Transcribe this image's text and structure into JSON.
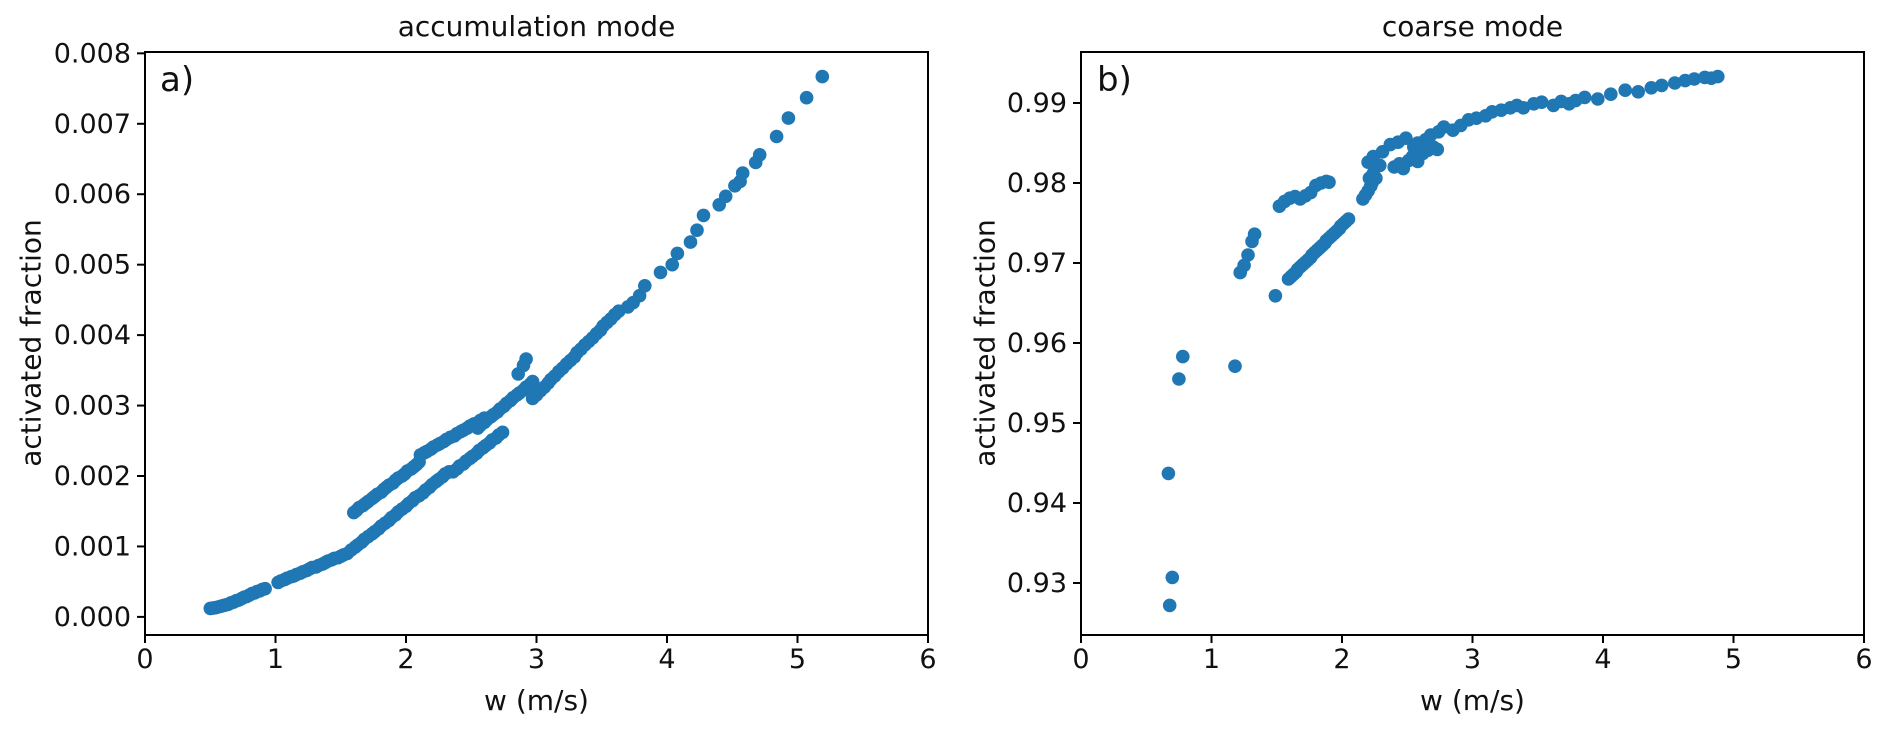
{
  "figure": {
    "background": "#ffffff",
    "text_color": "#111111",
    "axis_color": "#000000"
  },
  "chart_data": [
    {
      "type": "scatter",
      "panel_label": "a)",
      "title": "accumulation mode",
      "xlabel": "w (m/s)",
      "ylabel": "activated fraction",
      "xlim": [
        0,
        6
      ],
      "ylim": [
        -0.000257,
        0.008019
      ],
      "xticks": [
        0,
        1,
        2,
        3,
        4,
        5,
        6
      ],
      "xtick_labels": [
        "0",
        "1",
        "2",
        "3",
        "4",
        "5",
        "6"
      ],
      "yticks": [
        0.0,
        0.001,
        0.002,
        0.003,
        0.004,
        0.005,
        0.006,
        0.007,
        0.008
      ],
      "ytick_labels": [
        "0.000",
        "0.001",
        "0.002",
        "0.003",
        "0.004",
        "0.005",
        "0.006",
        "0.007",
        "0.008"
      ],
      "grid": false,
      "legend": null,
      "marker_color": "#1f77b4",
      "marker_radius_px": 6.8,
      "points": [
        [
          0.5,
          0.00012
        ],
        [
          0.52,
          0.000125
        ],
        [
          0.54,
          0.00013
        ],
        [
          0.56,
          0.00014
        ],
        [
          0.58,
          0.00015
        ],
        [
          0.6,
          0.00016
        ],
        [
          0.62,
          0.00017
        ],
        [
          0.64,
          0.00018
        ],
        [
          0.66,
          0.0002
        ],
        [
          0.68,
          0.00021
        ],
        [
          0.7,
          0.00023
        ],
        [
          0.72,
          0.00024
        ],
        [
          0.74,
          0.00026
        ],
        [
          0.76,
          0.00028
        ],
        [
          0.78,
          0.00029
        ],
        [
          0.8,
          0.00031
        ],
        [
          0.82,
          0.00033
        ],
        [
          0.84,
          0.00034
        ],
        [
          0.86,
          0.00036
        ],
        [
          0.88,
          0.00037
        ],
        [
          0.9,
          0.00039
        ],
        [
          0.92,
          0.0004
        ],
        [
          1.02,
          0.00049
        ],
        [
          1.04,
          0.00051
        ],
        [
          1.07,
          0.00053
        ],
        [
          1.09,
          0.00055
        ],
        [
          1.12,
          0.00057
        ],
        [
          1.14,
          0.00058
        ],
        [
          1.16,
          0.0006
        ],
        [
          1.19,
          0.00062
        ],
        [
          1.21,
          0.00064
        ],
        [
          1.24,
          0.00066
        ],
        [
          1.26,
          0.00068
        ],
        [
          1.28,
          0.0007
        ],
        [
          1.31,
          0.00071
        ],
        [
          1.33,
          0.00073
        ],
        [
          1.36,
          0.00075
        ],
        [
          1.38,
          0.00077
        ],
        [
          1.4,
          0.00079
        ],
        [
          1.43,
          0.00081
        ],
        [
          1.45,
          0.00083
        ],
        [
          1.48,
          0.00084
        ],
        [
          1.5,
          0.00086
        ],
        [
          1.52,
          0.00088
        ],
        [
          1.55,
          0.0009
        ],
        [
          1.6,
          0.00148
        ],
        [
          1.62,
          0.00151
        ],
        [
          1.64,
          0.00155
        ],
        [
          1.67,
          0.00158
        ],
        [
          1.69,
          0.00161
        ],
        [
          1.71,
          0.00164
        ],
        [
          1.74,
          0.00168
        ],
        [
          1.76,
          0.00171
        ],
        [
          1.78,
          0.00174
        ],
        [
          1.81,
          0.00177
        ],
        [
          1.83,
          0.00181
        ],
        [
          1.85,
          0.00184
        ],
        [
          1.87,
          0.00187
        ],
        [
          1.9,
          0.0019
        ],
        [
          1.92,
          0.00194
        ],
        [
          1.94,
          0.00197
        ],
        [
          1.97,
          0.002
        ],
        [
          1.99,
          0.00203
        ],
        [
          2.01,
          0.00207
        ],
        [
          2.04,
          0.0021
        ],
        [
          2.06,
          0.00213
        ],
        [
          2.08,
          0.00216
        ],
        [
          2.1,
          0.0022
        ],
        [
          1.58,
          0.00095
        ],
        [
          1.61,
          0.00099
        ],
        [
          1.63,
          0.00102
        ],
        [
          1.66,
          0.00106
        ],
        [
          1.68,
          0.0011
        ],
        [
          1.71,
          0.00114
        ],
        [
          1.74,
          0.00118
        ],
        [
          1.76,
          0.00121
        ],
        [
          1.79,
          0.00125
        ],
        [
          1.81,
          0.00129
        ],
        [
          1.84,
          0.00133
        ],
        [
          1.87,
          0.00137
        ],
        [
          1.89,
          0.00141
        ],
        [
          1.92,
          0.00145
        ],
        [
          1.94,
          0.00149
        ],
        [
          1.97,
          0.00153
        ],
        [
          2.0,
          0.00157
        ],
        [
          2.02,
          0.00161
        ],
        [
          2.05,
          0.00165
        ],
        [
          2.07,
          0.00169
        ],
        [
          2.1,
          0.00172
        ],
        [
          2.13,
          0.00176
        ],
        [
          2.15,
          0.0018
        ],
        [
          2.18,
          0.00184
        ],
        [
          2.2,
          0.00188
        ],
        [
          2.23,
          0.00192
        ],
        [
          2.25,
          0.00195
        ],
        [
          2.28,
          0.00199
        ],
        [
          2.3,
          0.00203
        ],
        [
          2.33,
          0.00206
        ],
        [
          2.11,
          0.0023
        ],
        [
          2.14,
          0.00233
        ],
        [
          2.16,
          0.00235
        ],
        [
          2.19,
          0.00238
        ],
        [
          2.21,
          0.00241
        ],
        [
          2.24,
          0.00244
        ],
        [
          2.26,
          0.00246
        ],
        [
          2.29,
          0.00249
        ],
        [
          2.31,
          0.00252
        ],
        [
          2.34,
          0.00255
        ],
        [
          2.37,
          0.00257
        ],
        [
          2.39,
          0.0026
        ],
        [
          2.42,
          0.00263
        ],
        [
          2.44,
          0.00265
        ],
        [
          2.47,
          0.00268
        ],
        [
          2.49,
          0.00271
        ],
        [
          2.52,
          0.00274
        ],
        [
          2.55,
          0.00276
        ],
        [
          2.57,
          0.00279
        ],
        [
          2.6,
          0.00282
        ],
        [
          2.36,
          0.00206
        ],
        [
          2.39,
          0.0021
        ],
        [
          2.41,
          0.00214
        ],
        [
          2.44,
          0.00217
        ],
        [
          2.46,
          0.00221
        ],
        [
          2.49,
          0.00225
        ],
        [
          2.51,
          0.00228
        ],
        [
          2.54,
          0.00232
        ],
        [
          2.56,
          0.00236
        ],
        [
          2.59,
          0.0024
        ],
        [
          2.61,
          0.00243
        ],
        [
          2.64,
          0.00247
        ],
        [
          2.66,
          0.00251
        ],
        [
          2.69,
          0.00254
        ],
        [
          2.71,
          0.00258
        ],
        [
          2.74,
          0.00262
        ],
        [
          2.55,
          0.00268
        ],
        [
          2.57,
          0.00272
        ],
        [
          2.6,
          0.00276
        ],
        [
          2.62,
          0.0028
        ],
        [
          2.65,
          0.00284
        ],
        [
          2.67,
          0.00287
        ],
        [
          2.7,
          0.00291
        ],
        [
          2.72,
          0.00295
        ],
        [
          2.75,
          0.00299
        ],
        [
          2.77,
          0.00303
        ],
        [
          2.8,
          0.00307
        ],
        [
          2.82,
          0.00311
        ],
        [
          2.85,
          0.00315
        ],
        [
          2.87,
          0.00318
        ],
        [
          2.9,
          0.00322
        ],
        [
          2.92,
          0.00326
        ],
        [
          2.95,
          0.0033
        ],
        [
          2.97,
          0.00334
        ],
        [
          2.86,
          0.00345
        ],
        [
          2.9,
          0.00357
        ],
        [
          2.92,
          0.00366
        ],
        [
          2.97,
          0.0031
        ],
        [
          3.0,
          0.00315
        ],
        [
          3.03,
          0.00321
        ],
        [
          3.06,
          0.00326
        ],
        [
          3.09,
          0.00332
        ],
        [
          3.11,
          0.00337
        ],
        [
          3.14,
          0.00342
        ],
        [
          3.17,
          0.00348
        ],
        [
          3.2,
          0.00353
        ],
        [
          3.23,
          0.00359
        ],
        [
          3.26,
          0.00364
        ],
        [
          3.29,
          0.00369
        ],
        [
          3.31,
          0.00375
        ],
        [
          3.34,
          0.0038
        ],
        [
          3.37,
          0.00386
        ],
        [
          3.4,
          0.00391
        ],
        [
          3.43,
          0.00396
        ],
        [
          3.46,
          0.00402
        ],
        [
          3.49,
          0.00407
        ],
        [
          3.51,
          0.00413
        ],
        [
          3.54,
          0.00418
        ],
        [
          3.57,
          0.00423
        ],
        [
          3.6,
          0.00429
        ],
        [
          3.63,
          0.00434
        ],
        [
          3.7,
          0.0044
        ],
        [
          3.74,
          0.00446
        ],
        [
          3.79,
          0.00456
        ],
        [
          3.83,
          0.0047
        ],
        [
          3.95,
          0.00489
        ],
        [
          4.04,
          0.005
        ],
        [
          4.08,
          0.00516
        ],
        [
          4.18,
          0.00532
        ],
        [
          4.23,
          0.00549
        ],
        [
          4.28,
          0.0057
        ],
        [
          4.4,
          0.00585
        ],
        [
          4.45,
          0.00597
        ],
        [
          4.52,
          0.00612
        ],
        [
          4.56,
          0.00618
        ],
        [
          4.58,
          0.0063
        ],
        [
          4.68,
          0.00645
        ],
        [
          4.71,
          0.00656
        ],
        [
          4.84,
          0.00682
        ],
        [
          4.93,
          0.00708
        ],
        [
          5.07,
          0.00737
        ],
        [
          5.19,
          0.00767
        ]
      ]
    },
    {
      "type": "scatter",
      "panel_label": "b)",
      "title": "coarse mode",
      "xlabel": "w (m/s)",
      "ylabel": "activated fraction",
      "xlim": [
        0,
        6
      ],
      "ylim": [
        0.9235,
        0.996375
      ],
      "xticks": [
        0,
        1,
        2,
        3,
        4,
        5,
        6
      ],
      "xtick_labels": [
        "0",
        "1",
        "2",
        "3",
        "4",
        "5",
        "6"
      ],
      "yticks": [
        0.93,
        0.94,
        0.95,
        0.96,
        0.97,
        0.98,
        0.99
      ],
      "ytick_labels": [
        "0.93",
        "0.94",
        "0.95",
        "0.96",
        "0.97",
        "0.98",
        "0.99"
      ],
      "grid": false,
      "legend": null,
      "marker_color": "#1f77b4",
      "marker_radius_px": 6.8,
      "points": [
        [
          0.68,
          0.9272
        ],
        [
          0.7,
          0.9307
        ],
        [
          0.67,
          0.9437
        ],
        [
          0.75,
          0.9555
        ],
        [
          0.78,
          0.9583
        ],
        [
          1.18,
          0.9571
        ],
        [
          1.49,
          0.9659
        ],
        [
          1.22,
          0.9688
        ],
        [
          1.25,
          0.9697
        ],
        [
          1.28,
          0.971
        ],
        [
          1.31,
          0.9727
        ],
        [
          1.33,
          0.9736
        ],
        [
          1.59,
          0.968
        ],
        [
          1.61,
          0.9683
        ],
        [
          1.63,
          0.9686
        ],
        [
          1.65,
          0.9689
        ],
        [
          1.66,
          0.9692
        ],
        [
          1.68,
          0.9695
        ],
        [
          1.7,
          0.9698
        ],
        [
          1.72,
          0.9701
        ],
        [
          1.74,
          0.9704
        ],
        [
          1.76,
          0.9707
        ],
        [
          1.77,
          0.971
        ],
        [
          1.79,
          0.9713
        ],
        [
          1.81,
          0.9716
        ],
        [
          1.83,
          0.9719
        ],
        [
          1.85,
          0.9722
        ],
        [
          1.87,
          0.9725
        ],
        [
          1.88,
          0.9728
        ],
        [
          1.9,
          0.9731
        ],
        [
          1.92,
          0.9734
        ],
        [
          1.94,
          0.9737
        ],
        [
          1.96,
          0.974
        ],
        [
          1.98,
          0.9743
        ],
        [
          1.99,
          0.9746
        ],
        [
          2.01,
          0.9749
        ],
        [
          2.03,
          0.9752
        ],
        [
          2.05,
          0.9755
        ],
        [
          1.52,
          0.9771
        ],
        [
          1.56,
          0.9777
        ],
        [
          1.6,
          0.9781
        ],
        [
          1.64,
          0.9783
        ],
        [
          1.68,
          0.978
        ],
        [
          1.72,
          0.9784
        ],
        [
          1.76,
          0.9788
        ],
        [
          1.8,
          0.9797
        ],
        [
          1.84,
          0.98
        ],
        [
          1.88,
          0.9802
        ],
        [
          1.9,
          0.9801
        ],
        [
          2.16,
          0.978
        ],
        [
          2.18,
          0.9785
        ],
        [
          2.2,
          0.979
        ],
        [
          2.22,
          0.9796
        ],
        [
          2.23,
          0.98
        ],
        [
          2.21,
          0.9806
        ],
        [
          2.2,
          0.9826
        ],
        [
          2.24,
          0.9812
        ],
        [
          2.26,
          0.9806
        ],
        [
          2.24,
          0.9833
        ],
        [
          2.29,
          0.9822
        ],
        [
          2.31,
          0.9839
        ],
        [
          2.4,
          0.982
        ],
        [
          2.44,
          0.9824
        ],
        [
          2.47,
          0.9818
        ],
        [
          2.51,
          0.9828
        ],
        [
          2.54,
          0.9833
        ],
        [
          2.58,
          0.9827
        ],
        [
          2.62,
          0.9837
        ],
        [
          2.66,
          0.9841
        ],
        [
          2.7,
          0.9845
        ],
        [
          2.73,
          0.9842
        ],
        [
          2.37,
          0.9848
        ],
        [
          2.43,
          0.9851
        ],
        [
          2.49,
          0.9856
        ],
        [
          2.55,
          0.9845
        ],
        [
          2.58,
          0.985
        ],
        [
          2.64,
          0.9854
        ],
        [
          2.68,
          0.986
        ],
        [
          2.74,
          0.9864
        ],
        [
          2.78,
          0.987
        ],
        [
          2.85,
          0.9866
        ],
        [
          2.91,
          0.9872
        ],
        [
          2.97,
          0.9879
        ],
        [
          3.03,
          0.9881
        ],
        [
          3.1,
          0.9884
        ],
        [
          3.15,
          0.9889
        ],
        [
          3.22,
          0.9891
        ],
        [
          3.29,
          0.9894
        ],
        [
          3.34,
          0.9897
        ],
        [
          3.39,
          0.9894
        ],
        [
          3.47,
          0.9899
        ],
        [
          3.53,
          0.9901
        ],
        [
          3.62,
          0.9897
        ],
        [
          3.68,
          0.9902
        ],
        [
          3.74,
          0.9899
        ],
        [
          3.79,
          0.9903
        ],
        [
          3.86,
          0.9907
        ],
        [
          3.96,
          0.9905
        ],
        [
          4.06,
          0.9911
        ],
        [
          4.17,
          0.9916
        ],
        [
          4.27,
          0.9914
        ],
        [
          4.37,
          0.9919
        ],
        [
          4.45,
          0.9922
        ],
        [
          4.55,
          0.9925
        ],
        [
          4.63,
          0.9928
        ],
        [
          4.7,
          0.993
        ],
        [
          4.78,
          0.9932
        ],
        [
          4.83,
          0.9931
        ],
        [
          4.88,
          0.9933
        ]
      ]
    }
  ]
}
